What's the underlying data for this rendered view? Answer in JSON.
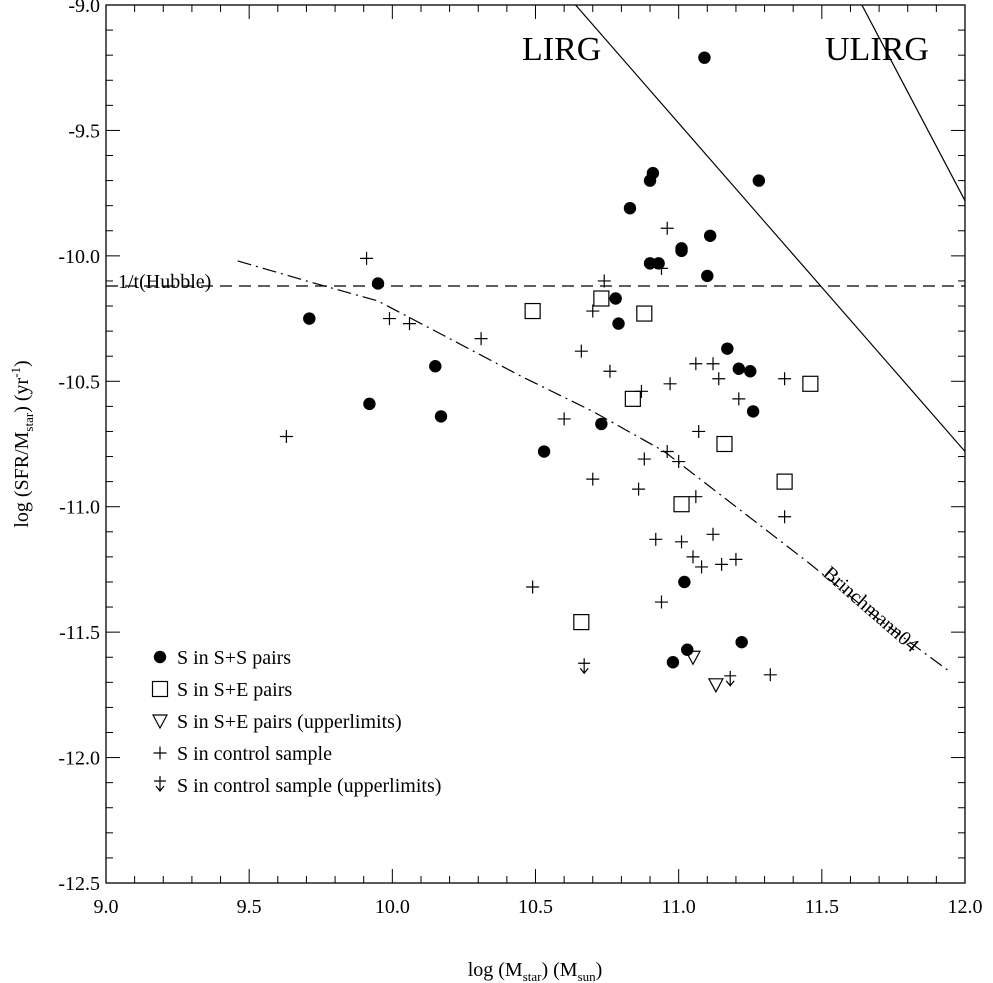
{
  "chart_data": {
    "type": "scatter",
    "title": "",
    "xlabel": "log (M_star) (M_sun)",
    "ylabel": "log (SFR/M_star) (yr^-1)",
    "xlabel_parts": {
      "pre": "log (M",
      "sub1": "star",
      "mid": ") (M",
      "sub2": "sun",
      "post": ")"
    },
    "ylabel_parts": {
      "pre": "log (SFR/M",
      "sub1": "star",
      "mid": ") (yr",
      "sup": "-1",
      "post": ")"
    },
    "xlim": [
      9.0,
      12.0
    ],
    "ylim": [
      -12.5,
      -9.0
    ],
    "x_ticks": [
      "9.0",
      "9.5",
      "10.0",
      "10.5",
      "11.0",
      "11.5",
      "12.0"
    ],
    "y_ticks": [
      "-9.0",
      "-9.5",
      "-10.0",
      "-10.5",
      "-11.0",
      "-11.5",
      "-12.0",
      "-12.5"
    ],
    "grid": false,
    "legend_position": "bottom-left",
    "series": [
      {
        "name": "S in S+S pairs",
        "marker": "filled-circle",
        "points": [
          [
            9.71,
            -10.25
          ],
          [
            9.92,
            -10.59
          ],
          [
            9.95,
            -10.11
          ],
          [
            10.15,
            -10.44
          ],
          [
            10.17,
            -10.64
          ],
          [
            10.53,
            -10.78
          ],
          [
            10.73,
            -10.67
          ],
          [
            10.78,
            -10.17
          ],
          [
            10.79,
            -10.27
          ],
          [
            10.83,
            -9.81
          ],
          [
            10.9,
            -9.7
          ],
          [
            10.91,
            -9.67
          ],
          [
            10.9,
            -10.03
          ],
          [
            10.93,
            -10.03
          ],
          [
            11.01,
            -9.98
          ],
          [
            11.01,
            -9.97
          ],
          [
            11.09,
            -9.21
          ],
          [
            11.1,
            -10.08
          ],
          [
            11.11,
            -9.92
          ],
          [
            11.28,
            -9.7
          ],
          [
            11.17,
            -10.37
          ],
          [
            11.21,
            -10.45
          ],
          [
            11.25,
            -10.46
          ],
          [
            11.26,
            -10.62
          ],
          [
            11.02,
            -11.3
          ],
          [
            10.98,
            -11.62
          ],
          [
            11.03,
            -11.57
          ],
          [
            11.22,
            -11.54
          ]
        ]
      },
      {
        "name": "S in S+E pairs",
        "marker": "open-square",
        "points": [
          [
            10.49,
            -10.22
          ],
          [
            10.73,
            -10.17
          ],
          [
            10.88,
            -10.23
          ],
          [
            10.84,
            -10.57
          ],
          [
            11.16,
            -10.75
          ],
          [
            11.46,
            -10.51
          ],
          [
            11.37,
            -10.9
          ],
          [
            11.01,
            -10.99
          ],
          [
            10.66,
            -11.46
          ]
        ]
      },
      {
        "name": "S in S+E pairs (upperlimits)",
        "marker": "open-triangle-down",
        "points": [
          [
            11.05,
            -11.6
          ],
          [
            11.13,
            -11.71
          ]
        ]
      },
      {
        "name": "S in control sample",
        "marker": "plus",
        "points": [
          [
            9.63,
            -10.72
          ],
          [
            9.91,
            -10.01
          ],
          [
            9.99,
            -10.25
          ],
          [
            10.06,
            -10.27
          ],
          [
            10.31,
            -10.33
          ],
          [
            10.49,
            -11.32
          ],
          [
            10.6,
            -10.65
          ],
          [
            10.66,
            -10.38
          ],
          [
            10.7,
            -10.89
          ],
          [
            10.7,
            -10.22
          ],
          [
            10.74,
            -10.1
          ],
          [
            10.76,
            -10.46
          ],
          [
            10.86,
            -10.93
          ],
          [
            10.87,
            -10.54
          ],
          [
            10.88,
            -10.81
          ],
          [
            10.92,
            -11.13
          ],
          [
            10.94,
            -11.38
          ],
          [
            10.96,
            -9.89
          ],
          [
            10.96,
            -10.78
          ],
          [
            10.97,
            -10.51
          ],
          [
            11.0,
            -10.82
          ],
          [
            11.01,
            -11.14
          ],
          [
            11.05,
            -11.2
          ],
          [
            11.06,
            -10.43
          ],
          [
            11.06,
            -10.96
          ],
          [
            11.07,
            -10.7
          ],
          [
            11.08,
            -11.24
          ],
          [
            11.12,
            -10.43
          ],
          [
            11.12,
            -11.11
          ],
          [
            11.14,
            -10.49
          ],
          [
            11.15,
            -11.23
          ],
          [
            11.2,
            -11.21
          ],
          [
            11.21,
            -10.57
          ],
          [
            11.32,
            -11.67
          ],
          [
            11.37,
            -10.49
          ],
          [
            11.37,
            -11.04
          ],
          [
            10.94,
            -10.05
          ]
        ]
      },
      {
        "name": "S in control sample (upperlimits)",
        "marker": "plus-arrow-down",
        "points": [
          [
            10.67,
            -11.64
          ],
          [
            11.18,
            -11.69
          ]
        ]
      }
    ],
    "reference_lines": [
      {
        "name": "LIRG",
        "style": "solid",
        "points": [
          [
            10.64,
            -9.0
          ],
          [
            12.0,
            -10.78
          ]
        ]
      },
      {
        "name": "ULIRG",
        "style": "solid",
        "points": [
          [
            11.64,
            -9.0
          ],
          [
            12.0,
            -9.78
          ]
        ]
      },
      {
        "name": "1/t(Hubble)",
        "style": "dashed",
        "points": [
          [
            9.0,
            -10.12
          ],
          [
            12.0,
            -10.12
          ]
        ]
      },
      {
        "name": "Brinchmann04",
        "style": "dash-dot",
        "points": [
          [
            9.46,
            -10.02
          ],
          [
            9.7,
            -10.1
          ],
          [
            9.95,
            -10.18
          ],
          [
            10.2,
            -10.33
          ],
          [
            10.45,
            -10.48
          ],
          [
            10.7,
            -10.62
          ],
          [
            10.95,
            -10.78
          ],
          [
            11.2,
            -11.0
          ],
          [
            11.45,
            -11.22
          ],
          [
            11.7,
            -11.45
          ],
          [
            11.95,
            -11.66
          ]
        ]
      }
    ],
    "annotations": {
      "lirg": "LIRG",
      "ulirg": "ULIRG",
      "hubble": "1/t(Hubble)",
      "brinchmann": "Brinchmann04"
    }
  }
}
